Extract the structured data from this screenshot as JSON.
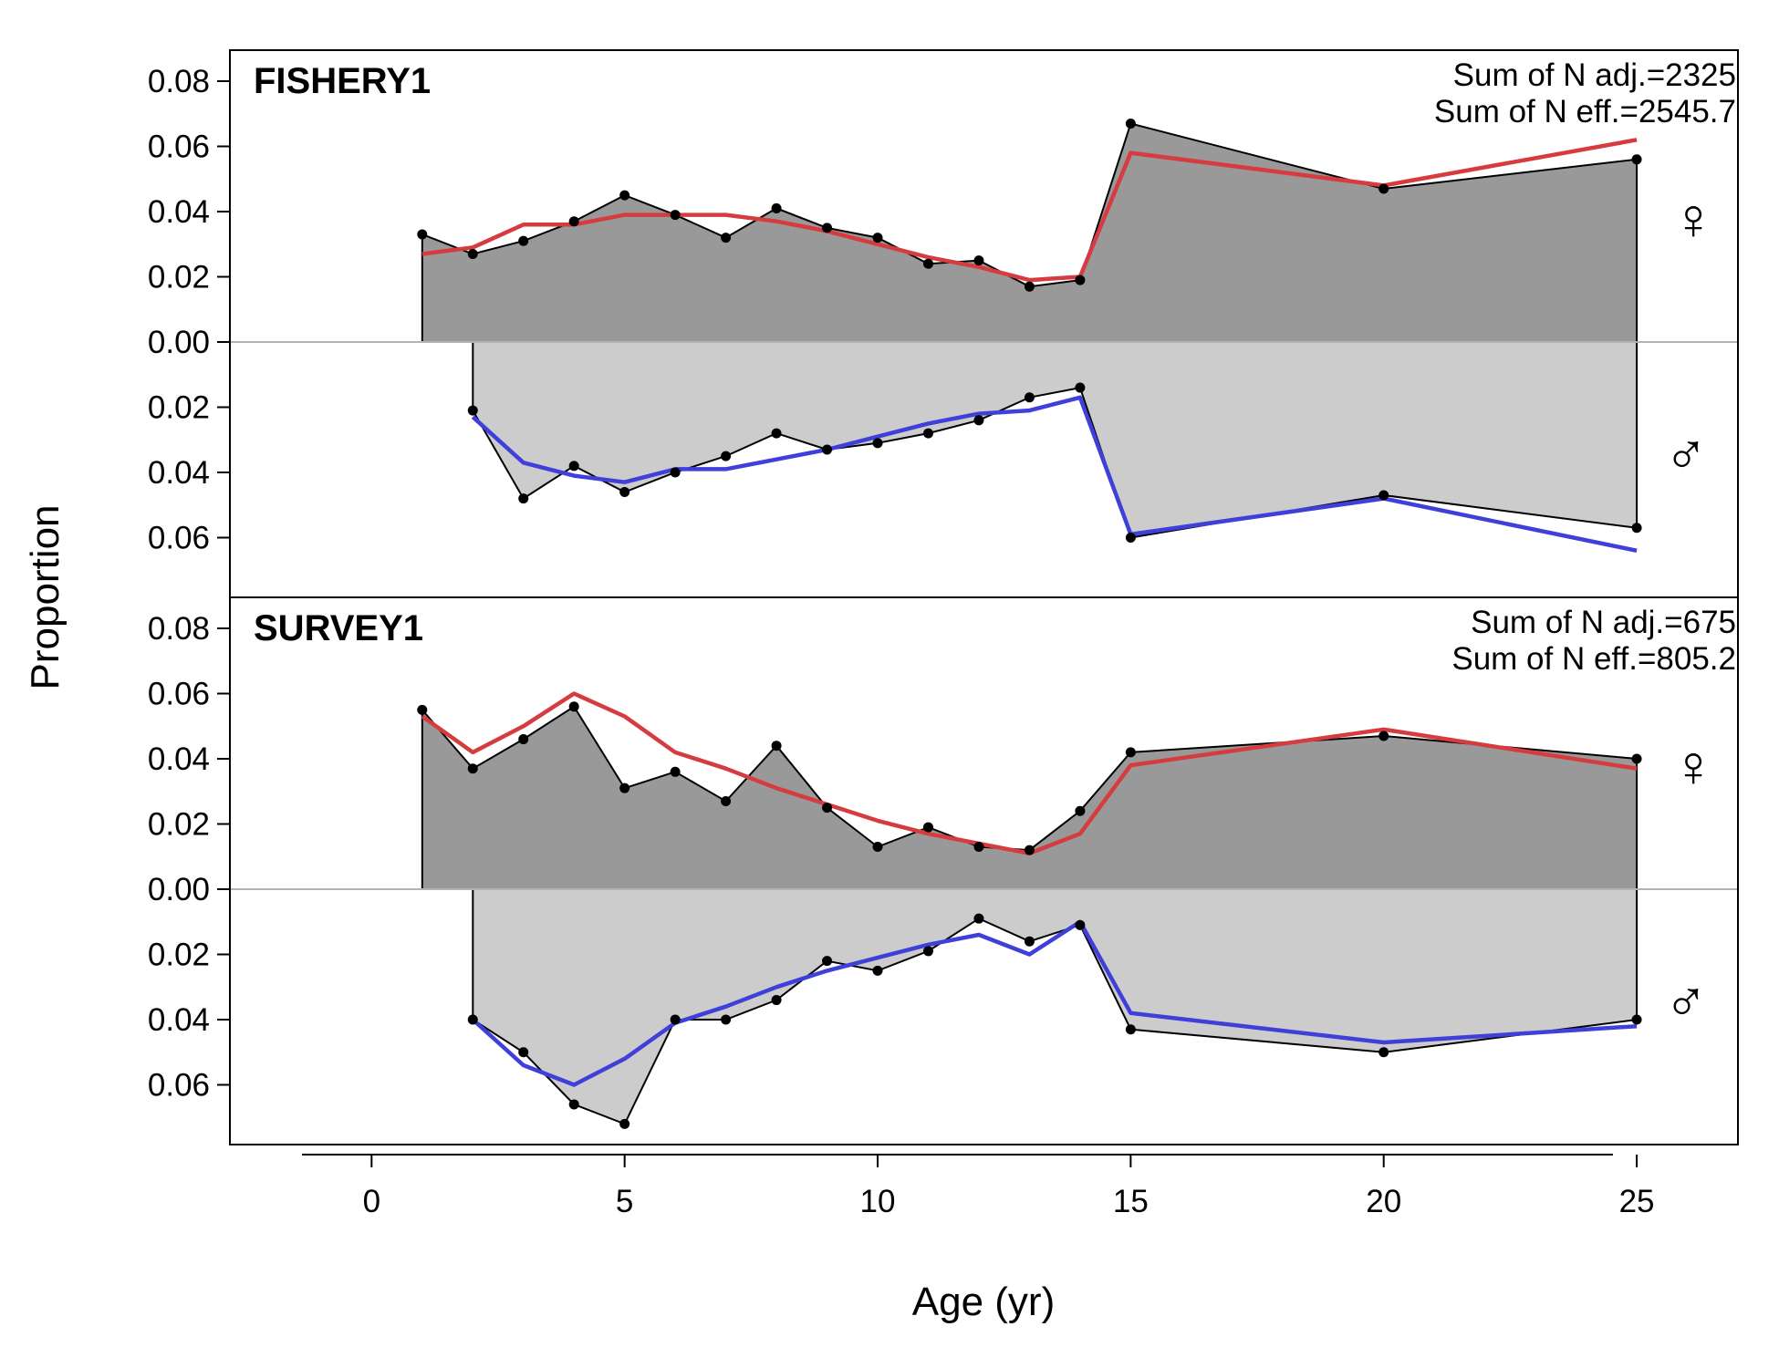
{
  "chart_data": {
    "type": "area",
    "xlabel": "Age (yr)",
    "ylabel": "Proportion",
    "xlim": [
      -2.8,
      27.0
    ],
    "x_ticks": [
      0,
      5,
      10,
      15,
      20,
      25
    ],
    "y_ticks_female": [
      "0.00",
      "0.02",
      "0.04",
      "0.06",
      "0.08"
    ],
    "y_ticks_male": [
      "0.02",
      "0.04",
      "0.06"
    ],
    "ylim_female": [
      0,
      0.08
    ],
    "ylim_male": [
      0,
      0.06
    ],
    "grid": false,
    "panels": [
      {
        "title": "FISHERY1",
        "annotation_line1": "Sum of N adj.=2325",
        "annotation_line2": "Sum of N eff.=2545.7",
        "female_symbol": "♀",
        "male_symbol": "♂",
        "female": {
          "ages": [
            1,
            2,
            3,
            4,
            5,
            6,
            7,
            8,
            9,
            10,
            11,
            12,
            13,
            14,
            15,
            20,
            25
          ],
          "observed": [
            0.033,
            0.027,
            0.031,
            0.037,
            0.045,
            0.039,
            0.032,
            0.041,
            0.035,
            0.032,
            0.024,
            0.025,
            0.017,
            0.019,
            0.067,
            0.047,
            0.056
          ],
          "expected": [
            0.027,
            0.029,
            0.036,
            0.036,
            0.039,
            0.039,
            0.039,
            0.037,
            0.034,
            0.03,
            0.026,
            0.023,
            0.019,
            0.02,
            0.058,
            0.048,
            0.062
          ]
        },
        "male": {
          "ages": [
            2,
            3,
            4,
            5,
            6,
            7,
            8,
            9,
            10,
            11,
            12,
            13,
            14,
            15,
            20,
            25
          ],
          "observed": [
            0.021,
            0.048,
            0.038,
            0.046,
            0.04,
            0.035,
            0.028,
            0.033,
            0.031,
            0.028,
            0.024,
            0.017,
            0.014,
            0.06,
            0.047,
            0.057
          ],
          "expected": [
            0.023,
            0.037,
            0.041,
            0.043,
            0.039,
            0.039,
            0.036,
            0.033,
            0.029,
            0.025,
            0.022,
            0.021,
            0.017,
            0.059,
            0.048,
            0.064
          ]
        }
      },
      {
        "title": "SURVEY1",
        "annotation_line1": "Sum of N adj.=675",
        "annotation_line2": "Sum of N eff.=805.2",
        "female_symbol": "♀",
        "male_symbol": "♂",
        "female": {
          "ages": [
            1,
            2,
            3,
            4,
            5,
            6,
            7,
            8,
            9,
            10,
            11,
            12,
            13,
            14,
            15,
            20,
            25
          ],
          "observed": [
            0.055,
            0.037,
            0.046,
            0.056,
            0.031,
            0.036,
            0.027,
            0.044,
            0.025,
            0.013,
            0.019,
            0.013,
            0.012,
            0.024,
            0.042,
            0.047,
            0.04
          ],
          "expected": [
            0.053,
            0.042,
            0.05,
            0.06,
            0.053,
            0.042,
            0.037,
            0.031,
            0.026,
            0.021,
            0.017,
            0.014,
            0.011,
            0.017,
            0.038,
            0.049,
            0.037
          ]
        },
        "male": {
          "ages": [
            2,
            3,
            4,
            5,
            6,
            7,
            8,
            9,
            10,
            11,
            12,
            13,
            14,
            15,
            20,
            25
          ],
          "observed": [
            0.04,
            0.05,
            0.066,
            0.072,
            0.04,
            0.04,
            0.034,
            0.022,
            0.025,
            0.019,
            0.009,
            0.016,
            0.011,
            0.043,
            0.05,
            0.04
          ],
          "expected": [
            0.04,
            0.054,
            0.06,
            0.052,
            0.041,
            0.036,
            0.03,
            0.025,
            0.021,
            0.017,
            0.014,
            0.02,
            0.01,
            0.038,
            0.047,
            0.042
          ]
        }
      }
    ],
    "colors": {
      "female_fill": "#999999",
      "male_fill": "#cccccc",
      "observed_line": "#000000",
      "female_expected": "#d63c3f",
      "male_expected": "#3f3fd9",
      "female_symbol": "#c42027",
      "male_symbol": "#2222cc",
      "zero_line": "#b3b3b3"
    }
  }
}
